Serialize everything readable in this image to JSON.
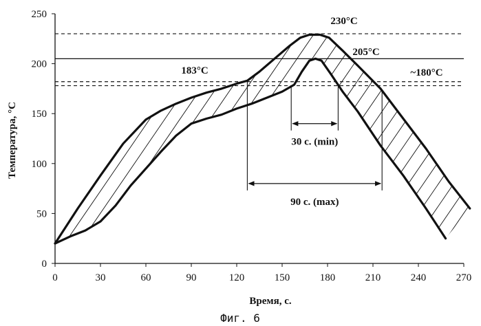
{
  "chart_data": {
    "type": "line",
    "xlabel": "Время, с.",
    "ylabel": "Температура, °С",
    "xlim": [
      0,
      270
    ],
    "ylim": [
      0,
      250
    ],
    "x_ticks": [
      0,
      30,
      60,
      90,
      120,
      150,
      180,
      210,
      240,
      270
    ],
    "y_ticks": [
      0,
      50,
      100,
      150,
      200,
      250
    ],
    "grid": false,
    "series": [
      {
        "role": "upper-bound",
        "x": [
          0,
          15,
          30,
          45,
          60,
          70,
          80,
          90,
          100,
          110,
          120,
          127,
          135,
          145,
          155,
          162,
          168,
          175,
          181,
          190,
          200,
          215,
          230,
          245,
          260,
          274
        ],
        "y": [
          20,
          55,
          88,
          120,
          144,
          153,
          160,
          166,
          171,
          175,
          180,
          183,
          192,
          205,
          218,
          226,
          229,
          229,
          226,
          213,
          198,
          175,
          145,
          115,
          82,
          55
        ]
      },
      {
        "role": "lower-bound",
        "x": [
          0,
          10,
          20,
          30,
          40,
          50,
          60,
          70,
          80,
          90,
          100,
          110,
          120,
          130,
          140,
          150,
          158,
          163,
          168,
          172,
          176,
          182,
          190,
          200,
          215,
          230,
          245,
          258
        ],
        "y": [
          20,
          27,
          33,
          42,
          58,
          78,
          95,
          112,
          128,
          140,
          145,
          149,
          155,
          160,
          166,
          172,
          179,
          192,
          203,
          205,
          203,
          190,
          172,
          152,
          118,
          88,
          55,
          25
        ]
      }
    ],
    "reference_lines": [
      {
        "y": 230,
        "style": "dashed",
        "label": "230°C"
      },
      {
        "y": 205,
        "style": "solid",
        "label": "205°C"
      },
      {
        "y": 182,
        "style": "dashed",
        "label": "183°C"
      },
      {
        "y": 178,
        "style": "dashed",
        "label": "~180°C"
      }
    ],
    "annotations": [
      {
        "label": "30 с. (min)",
        "x_start": 156,
        "x_end": 187,
        "y": 140
      },
      {
        "label": "90 с. (max)",
        "x_start": 127,
        "x_end": 216,
        "y": 80
      }
    ],
    "caption": "Фиг. 6"
  },
  "colors": {
    "ink": "#111111",
    "background": "#ffffff"
  }
}
